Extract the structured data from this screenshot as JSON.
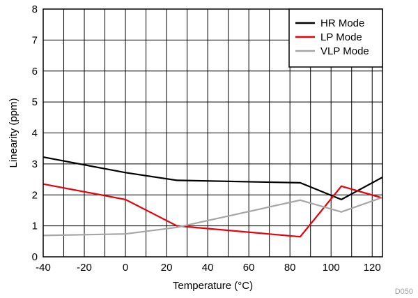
{
  "chart_data": {
    "type": "line",
    "xlabel": "Temperature (°C)",
    "ylabel": "Linearity (ppm)",
    "xlim": [
      -40,
      125
    ],
    "ylim": [
      0,
      8
    ],
    "x_ticks": [
      -40,
      -20,
      0,
      20,
      40,
      60,
      80,
      100,
      120
    ],
    "y_ticks": [
      0,
      1,
      2,
      3,
      4,
      5,
      6,
      7,
      8
    ],
    "x_minor_step": 10,
    "grid": true,
    "legend_position": "top-right",
    "figure_id": "D050",
    "series": [
      {
        "name": "HR Mode",
        "color": "#000000",
        "x": [
          -40,
          0,
          25,
          85,
          105,
          125
        ],
        "y": [
          3.22,
          2.72,
          2.47,
          2.39,
          1.85,
          2.57
        ]
      },
      {
        "name": "LP Mode",
        "color": "#e8000b",
        "x": [
          -40,
          0,
          25,
          85,
          105,
          125
        ],
        "y": [
          2.35,
          1.85,
          1.0,
          0.65,
          2.28,
          1.9
        ]
      },
      {
        "name": "VLP Mode",
        "color": "#a6a6a6",
        "x": [
          -40,
          0,
          25,
          85,
          105,
          125
        ],
        "y": [
          0.69,
          0.74,
          0.95,
          1.83,
          1.45,
          1.92
        ]
      }
    ]
  }
}
